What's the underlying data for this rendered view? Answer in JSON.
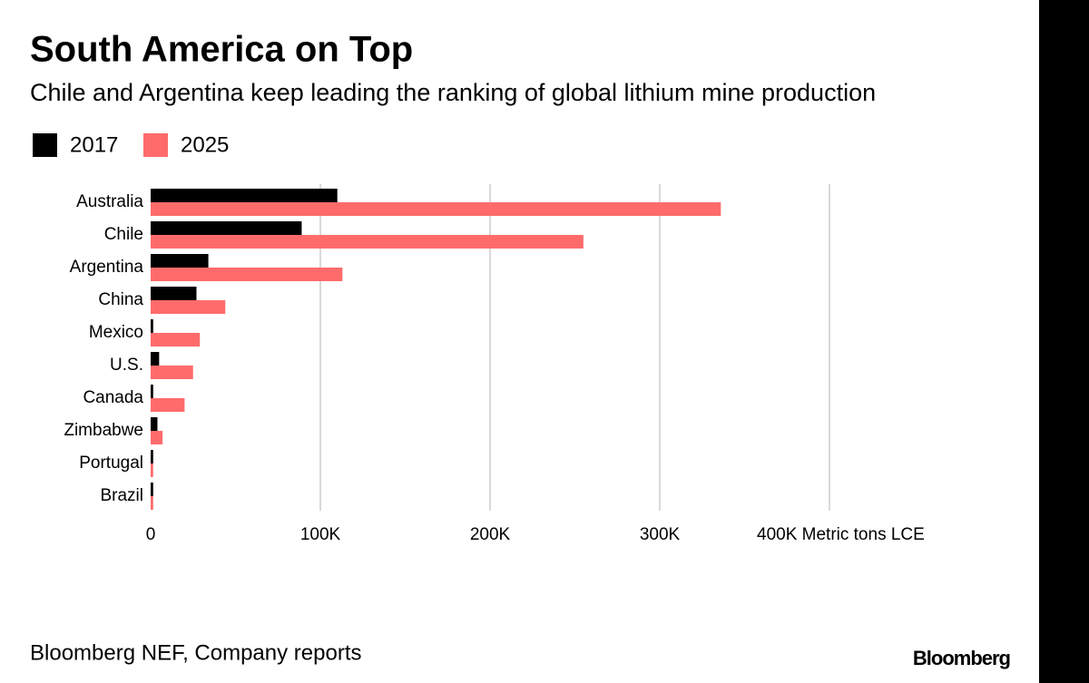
{
  "chart_data": {
    "type": "barh",
    "title": "South America on Top",
    "subtitle": "Chile and Argentina keep leading the ranking of global lithium mine production",
    "source": "Bloomberg NEF, Company reports",
    "brand": "Bloomberg",
    "categories": [
      "Australia",
      "Chile",
      "Argentina",
      "China",
      "Mexico",
      "U.S.",
      "Canada",
      "Zimbabwe",
      "Portugal",
      "Brazil"
    ],
    "series": [
      {
        "name": "2017",
        "color": "#000000",
        "values": [
          110000,
          89000,
          34000,
          27000,
          1500,
          5000,
          1500,
          4000,
          1500,
          1500
        ]
      },
      {
        "name": "2025",
        "color": "#ff6b6b",
        "values": [
          336000,
          255000,
          113000,
          44000,
          29000,
          25000,
          20000,
          7000,
          1500,
          1500
        ]
      }
    ],
    "xlim": [
      0,
      500000
    ],
    "xticks": [
      0,
      {
        "value": 100000,
        "label": "100K"
      },
      {
        "value": 200000,
        "label": "200K"
      },
      {
        "value": 300000,
        "label": "300K"
      },
      {
        "value": 400000,
        "label": "400K Metric tons LCE"
      }
    ],
    "grid": true
  }
}
